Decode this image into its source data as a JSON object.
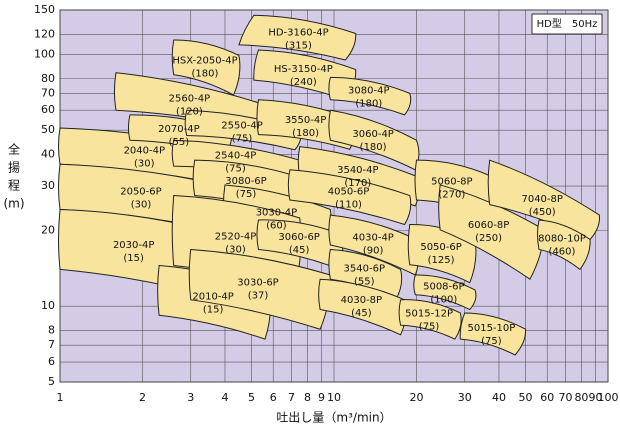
{
  "chart_data": {
    "type": "coverage",
    "legend_text": "HD型　50Hz",
    "x_label": "吐出し量（m³/min）",
    "y_label": [
      "全",
      "揚",
      "程",
      "(m)"
    ],
    "xlog": true,
    "ylog": true,
    "grid": true,
    "xlim": [
      1,
      100
    ],
    "ylim": [
      5,
      150
    ],
    "xticks": [
      1,
      2,
      3,
      4,
      5,
      6,
      7,
      8,
      9,
      10,
      20,
      30,
      40,
      50,
      60,
      70,
      80,
      90,
      100
    ],
    "yticks": [
      5,
      6,
      7,
      8,
      10,
      20,
      30,
      40,
      50,
      60,
      70,
      80,
      100,
      120,
      150
    ],
    "plot_color": "#d4cce6",
    "region_color": "#f8e49c",
    "regions": [
      {
        "label": "2040-4P",
        "power": "(30)",
        "corners": [
          [
            1,
            51
          ],
          [
            4.2,
            41.8
          ],
          [
            4.05,
            30.3
          ],
          [
            1,
            36.6
          ]
        ]
      },
      {
        "label": "2050-6P",
        "power": "(30)",
        "corners": [
          [
            1,
            36.6
          ],
          [
            4,
            30
          ],
          [
            3.8,
            20
          ],
          [
            1,
            24.2
          ]
        ]
      },
      {
        "label": "2030-4P",
        "power": "(15)",
        "corners": [
          [
            1,
            24.2
          ],
          [
            3.5,
            20
          ],
          [
            3.4,
            11.1
          ],
          [
            1,
            14
          ]
        ]
      },
      {
        "label": "2010-4P",
        "power": "(15)",
        "corners": [
          [
            2.3,
            14.5
          ],
          [
            5.8,
            11.6
          ],
          [
            5.6,
            7.4
          ],
          [
            2.3,
            9.2
          ]
        ]
      },
      {
        "label": "2070-4P",
        "power": "(55)",
        "corners": [
          [
            1.8,
            57.5
          ],
          [
            4.2,
            50
          ],
          [
            4,
            40
          ],
          [
            1.8,
            45.6
          ]
        ]
      },
      {
        "label": "2560-4P",
        "power": "(120)",
        "corners": [
          [
            1.6,
            84.5
          ],
          [
            5.6,
            63
          ],
          [
            5.4,
            50
          ],
          [
            1.6,
            60
          ]
        ]
      },
      {
        "label": "HSX-2050-4P",
        "power": "(180)",
        "corners": [
          [
            2.6,
            114
          ],
          [
            4.5,
            99
          ],
          [
            4.3,
            69
          ],
          [
            2.6,
            83
          ]
        ]
      },
      {
        "label": "2550-4P",
        "power": "(75)",
        "corners": [
          [
            2.9,
            60
          ],
          [
            7.5,
            50
          ],
          [
            7.2,
            41.8
          ],
          [
            2.9,
            47.6
          ]
        ]
      },
      {
        "label": "2540-4P",
        "power": "(75)",
        "corners": [
          [
            2.6,
            45.6
          ],
          [
            7.5,
            38
          ],
          [
            7.2,
            31.7
          ],
          [
            2.6,
            36
          ]
        ]
      },
      {
        "label": "3080-6P",
        "power": "(75)",
        "corners": [
          [
            3.1,
            38
          ],
          [
            7.5,
            32.5
          ],
          [
            7.2,
            23
          ],
          [
            3.1,
            27.5
          ]
        ]
      },
      {
        "label": "3030-4P",
        "power": "(60)",
        "corners": [
          [
            4,
            30.3
          ],
          [
            9.7,
            24.2
          ],
          [
            9.3,
            16
          ],
          [
            4,
            21.1
          ]
        ]
      },
      {
        "label": "2520-4P",
        "power": "(30)",
        "corners": [
          [
            2.6,
            27.5
          ],
          [
            7.5,
            22.4
          ],
          [
            7.2,
            11.6
          ],
          [
            2.6,
            14.5
          ]
        ]
      },
      {
        "label": "3030-6P",
        "power": "(37)",
        "corners": [
          [
            3,
            16.8
          ],
          [
            9.7,
            13.3
          ],
          [
            8.9,
            8.1
          ],
          [
            3,
            10.6
          ]
        ]
      },
      {
        "label": "3060-6P",
        "power": "(45)",
        "corners": [
          [
            5.3,
            22
          ],
          [
            10.5,
            19.4
          ],
          [
            10.5,
            14
          ],
          [
            5.3,
            16.8
          ]
        ]
      },
      {
        "label": "HD-3160-4P",
        "power": "(315)",
        "corners": [
          [
            5.1,
            143
          ],
          [
            12,
            121
          ],
          [
            11,
            95
          ],
          [
            4.5,
            109
          ]
        ]
      },
      {
        "label": "HS-3150-4P",
        "power": "(240)",
        "corners": [
          [
            5.3,
            104
          ],
          [
            12,
            87
          ],
          [
            11,
            66
          ],
          [
            5.1,
            79
          ]
        ]
      },
      {
        "label": "3550-4P",
        "power": "(180)",
        "corners": [
          [
            5.3,
            66
          ],
          [
            12,
            55
          ],
          [
            11.4,
            42
          ],
          [
            5.3,
            48
          ]
        ]
      },
      {
        "label": "3080-4P",
        "power": "(180)",
        "corners": [
          [
            9.7,
            81
          ],
          [
            18.9,
            70
          ],
          [
            18.1,
            57.5
          ],
          [
            9.7,
            66
          ]
        ]
      },
      {
        "label": "3060-4P",
        "power": "(180)",
        "corners": [
          [
            9.7,
            60
          ],
          [
            20,
            45.6
          ],
          [
            19.8,
            34.8
          ],
          [
            9.7,
            45.6
          ]
        ]
      },
      {
        "label": "3540-4P",
        "power": "(170)",
        "corners": [
          [
            7.5,
            43
          ],
          [
            20,
            32.8
          ],
          [
            19.8,
            25
          ],
          [
            7.5,
            33
          ]
        ]
      },
      {
        "label": "4050-6P",
        "power": "(110)",
        "corners": [
          [
            6.9,
            34.8
          ],
          [
            18.9,
            27.5
          ],
          [
            18.1,
            21.1
          ],
          [
            6.9,
            26.4
          ]
        ]
      },
      {
        "label": "4030-4P",
        "power": "(90)",
        "corners": [
          [
            9.7,
            23
          ],
          [
            20,
            18.4
          ],
          [
            19.8,
            13.3
          ],
          [
            9.7,
            17.5
          ]
        ]
      },
      {
        "label": "3540-6P",
        "power": "(55)",
        "corners": [
          [
            9.7,
            16.8
          ],
          [
            17.5,
            14
          ],
          [
            16.8,
            10.6
          ],
          [
            9.7,
            12.8
          ]
        ]
      },
      {
        "label": "4030-8P",
        "power": "(45)",
        "corners": [
          [
            8.9,
            12.8
          ],
          [
            18.1,
            10.6
          ],
          [
            17.5,
            7.7
          ],
          [
            8.9,
            9.7
          ]
        ]
      },
      {
        "label": "5060-8P",
        "power": "(270)",
        "corners": [
          [
            20,
            38
          ],
          [
            37,
            33
          ],
          [
            35.5,
            23
          ],
          [
            20,
            26.4
          ]
        ]
      },
      {
        "label": "5050-6P",
        "power": "(125)",
        "corners": [
          [
            18.9,
            21.1
          ],
          [
            32.7,
            18.4
          ],
          [
            31.3,
            12.4
          ],
          [
            18.9,
            14.6
          ]
        ]
      },
      {
        "label": "5008-6P",
        "power": "(100)",
        "corners": [
          [
            19.8,
            13.3
          ],
          [
            32.7,
            11.6
          ],
          [
            31.3,
            9.7
          ],
          [
            19.8,
            11.1
          ]
        ]
      },
      {
        "label": "5015-12P",
        "power": "(75)",
        "corners": [
          [
            17.5,
            10.6
          ],
          [
            28.9,
            9.4
          ],
          [
            27.6,
            7.4
          ],
          [
            17.5,
            8.4
          ]
        ]
      },
      {
        "label": "5015-10P",
        "power": "(75)",
        "corners": [
          [
            30,
            9.4
          ],
          [
            50,
            8.1
          ],
          [
            45.8,
            6.4
          ],
          [
            28.9,
            7.4
          ]
        ]
      },
      {
        "label": "6060-8P",
        "power": "(250)",
        "corners": [
          [
            24.4,
            30.3
          ],
          [
            58.5,
            20.1
          ],
          [
            51.9,
            12.8
          ],
          [
            24.4,
            20.1
          ]
        ]
      },
      {
        "label": "7040-8P",
        "power": "(450)",
        "corners": [
          [
            37,
            38
          ],
          [
            93,
            23
          ],
          [
            86,
            18.4
          ],
          [
            37,
            25.3
          ]
        ]
      },
      {
        "label": "8080-10P",
        "power": "(460)",
        "corners": [
          [
            56,
            22
          ],
          [
            86,
            18.4
          ],
          [
            79,
            14
          ],
          [
            56,
            16.8
          ]
        ]
      }
    ]
  }
}
